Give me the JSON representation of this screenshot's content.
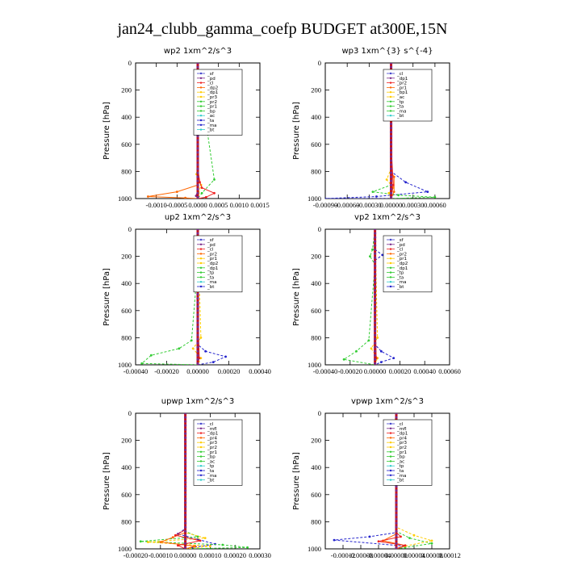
{
  "figure": {
    "title": "jan24_clubb_gamma_coefp  BUDGET at300E,15N"
  },
  "chart_data": [
    {
      "type": "line",
      "title": "wp2  1xm^2/s^3",
      "ylabel": "Pressure [hPa]",
      "xlim": [
        -0.0015,
        0.0015
      ],
      "ylim": [
        1000,
        0
      ],
      "y_ticks": [
        0,
        200,
        400,
        600,
        800,
        1000
      ],
      "x_tick_labels": [
        "-0.0010",
        "-0.0005",
        "0.0000",
        "0.0005",
        "0.0010",
        "0.0015"
      ],
      "x_tick_values": [
        -0.001,
        -0.0005,
        0.0,
        0.0005,
        0.001,
        0.0015
      ],
      "legend": [
        "_sf",
        "_pd",
        "_cl",
        "_dp2",
        "_dp1",
        "_pr3",
        "_pr2",
        "_pr1",
        "_bp",
        "_ac",
        "_ta",
        "_ma",
        "_bt"
      ],
      "series": [
        {
          "name": "_pr1",
          "color": "#33cc33",
          "style": "dash",
          "x": [
            0,
            3e-05,
            8e-05,
            0.00015,
            0.0001,
            0.0004,
            0.0001,
            0
          ],
          "y": [
            0,
            120,
            170,
            200,
            230,
            860,
            960,
            1000
          ]
        },
        {
          "name": "_dp1",
          "color": "#ffcc00",
          "style": "dash",
          "x": [
            0,
            0,
            -3e-05,
            8e-05,
            2e-05,
            0
          ],
          "y": [
            0,
            700,
            820,
            900,
            960,
            1000
          ]
        },
        {
          "name": "_dp2",
          "color": "#ff6600",
          "style": "solid",
          "x": [
            0,
            0,
            -0.0005,
            -0.0012,
            -0.0003,
            0
          ],
          "y": [
            0,
            900,
            950,
            985,
            995,
            1000
          ]
        },
        {
          "name": "_cl",
          "color": "#ee2222",
          "style": "solid",
          "x": [
            0,
            0,
            5e-05,
            0.0001,
            0.0004,
            0.0002,
            0
          ],
          "y": [
            0,
            780,
            880,
            920,
            960,
            990,
            1000
          ]
        },
        {
          "name": "_pd",
          "color": "#7a2a8a",
          "style": "solid",
          "x": [
            0,
            0,
            -4e-05,
            0
          ],
          "y": [
            0,
            940,
            980,
            1000
          ]
        },
        {
          "name": "_sf",
          "color": "#4444cc",
          "style": "solid",
          "x": [
            0,
            0,
            0
          ],
          "y": [
            0,
            500,
            1000
          ]
        }
      ]
    },
    {
      "type": "line",
      "title": "wp3  1xm^{3} s^{-4}",
      "ylabel": "Pressure [hPa]",
      "xlim": [
        -0.0009,
        0.0008
      ],
      "ylim": [
        1000,
        0
      ],
      "y_ticks": [
        0,
        200,
        400,
        600,
        800,
        1000
      ],
      "x_tick_labels": [
        "-0.00090",
        "-0.00060",
        "-0.00030",
        "0.00000",
        "0.00030",
        "0.00060"
      ],
      "x_tick_values": [
        -0.0009,
        -0.0006,
        -0.0003,
        0.0,
        0.0003,
        0.0006
      ],
      "legend": [
        "_cl",
        "_dp1",
        "_pr2",
        "_pr1",
        "_bp1",
        "_ac",
        "_tp",
        "_ta",
        "_ma",
        "_bt"
      ],
      "series": [
        {
          "name": "_tp",
          "color": "#2222cc",
          "style": "dash",
          "x": [
            0,
            0,
            5e-05,
            9e-05,
            4e-05,
            0,
            0,
            0.0002,
            0.0005,
            -0.0002,
            -0.0009,
            0
          ],
          "y": [
            0,
            120,
            140,
            160,
            190,
            220,
            800,
            880,
            950,
            985,
            1000,
            1000
          ]
        },
        {
          "name": "_ac",
          "color": "#33cc33",
          "style": "dash",
          "x": [
            0,
            0,
            -0.00025,
            0.0001,
            0.0006,
            0
          ],
          "y": [
            0,
            900,
            950,
            975,
            990,
            1000
          ]
        },
        {
          "name": "_pr2",
          "color": "#ffcc00",
          "style": "dash",
          "x": [
            0,
            0,
            -6e-05,
            3e-05,
            -3e-05,
            0
          ],
          "y": [
            0,
            780,
            860,
            920,
            960,
            1000
          ]
        },
        {
          "name": "_dp1",
          "color": "#ff6600",
          "style": "solid",
          "x": [
            0,
            0,
            4e-05,
            4e-05,
            0
          ],
          "y": [
            0,
            800,
            840,
            950,
            1000
          ]
        },
        {
          "name": "_cl",
          "color": "#ee2222",
          "style": "solid",
          "x": [
            0,
            0,
            3e-05,
            0
          ],
          "y": [
            0,
            600,
            900,
            1000
          ]
        }
      ]
    },
    {
      "type": "line",
      "title": "up2  1xm^2/s^3",
      "ylabel": "Pressure [hPa]",
      "xlim": [
        -0.0004,
        0.0004
      ],
      "ylim": [
        1000,
        0
      ],
      "y_ticks": [
        0,
        200,
        400,
        600,
        800,
        1000
      ],
      "x_tick_labels": [
        "-0.00040",
        "-0.00020",
        "0.00000",
        "0.00020",
        "0.00040"
      ],
      "x_tick_values": [
        -0.0004,
        -0.0002,
        0.0,
        0.0002,
        0.0004
      ],
      "legend": [
        "_sf",
        "_pd",
        "_cl",
        "_pr2",
        "_pr1",
        "_dp2",
        "_dp1",
        "_tp",
        "_ta",
        "_ma",
        "_bt"
      ],
      "series": [
        {
          "name": "_tp",
          "color": "#2222cc",
          "style": "dash",
          "x": [
            0,
            0,
            5e-05,
            0.00018,
            0.0001,
            0
          ],
          "y": [
            0,
            850,
            900,
            940,
            980,
            1000
          ]
        },
        {
          "name": "_dp1",
          "color": "#33cc33",
          "style": "dash",
          "x": [
            0,
            1e-05,
            -2e-05,
            0,
            -4e-05,
            -0.00012,
            -0.0003,
            -0.00036,
            0
          ],
          "y": [
            0,
            150,
            200,
            260,
            820,
            880,
            930,
            990,
            1000
          ]
        },
        {
          "name": "_pr2",
          "color": "#ffcc00",
          "style": "dash",
          "x": [
            0,
            2e-05,
            -3e-05,
            2e-05,
            0
          ],
          "y": [
            0,
            800,
            880,
            950,
            1000
          ]
        },
        {
          "name": "_cl",
          "color": "#ee2222",
          "style": "solid",
          "x": [
            0,
            0,
            1e-05,
            0
          ],
          "y": [
            0,
            600,
            950,
            1000
          ]
        }
      ]
    },
    {
      "type": "line",
      "title": "vp2  1xm^2/s^3",
      "ylabel": "Pressure [hPa]",
      "xlim": [
        -0.0004,
        0.0006
      ],
      "ylim": [
        1000,
        0
      ],
      "y_ticks": [
        0,
        200,
        400,
        600,
        800,
        1000
      ],
      "x_tick_labels": [
        "-0.00040",
        "-0.00020",
        "0.00000",
        "0.00020",
        "0.00040",
        "0.00060"
      ],
      "x_tick_values": [
        -0.0004,
        -0.0002,
        0.0,
        0.0002,
        0.0004,
        0.0006
      ],
      "legend": [
        "_sf",
        "_pd",
        "_cl",
        "_pr2",
        "_pr1",
        "_dp2",
        "_dp1",
        "_tp",
        "_ta",
        "_ma",
        "_bt"
      ],
      "series": [
        {
          "name": "_tp",
          "color": "#2222cc",
          "style": "dash",
          "x": [
            0,
            0,
            6e-05,
            0,
            0,
            5e-05,
            0.00015,
            5e-05,
            0
          ],
          "y": [
            0,
            150,
            190,
            230,
            850,
            900,
            950,
            980,
            1000
          ]
        },
        {
          "name": "_dp1",
          "color": "#33cc33",
          "style": "dash",
          "x": [
            0,
            -2e-05,
            -4e-05,
            0,
            -5e-05,
            -0.00015,
            -0.00025,
            0
          ],
          "y": [
            0,
            150,
            200,
            260,
            820,
            900,
            960,
            1000
          ]
        },
        {
          "name": "_pr2",
          "color": "#ffcc00",
          "style": "dash",
          "x": [
            0,
            2e-05,
            -3e-05,
            2e-05,
            0
          ],
          "y": [
            0,
            800,
            880,
            950,
            1000
          ]
        },
        {
          "name": "_cl",
          "color": "#ee2222",
          "style": "solid",
          "x": [
            0,
            0,
            1e-05,
            0
          ],
          "y": [
            0,
            600,
            950,
            1000
          ]
        }
      ]
    },
    {
      "type": "line",
      "title": "upwp  1xm^2/s^3",
      "ylabel": "Pressure [hPa]",
      "xlim": [
        -0.0002,
        0.0003
      ],
      "ylim": [
        1000,
        0
      ],
      "y_ticks": [
        0,
        200,
        400,
        600,
        800,
        1000
      ],
      "x_tick_labels": [
        "-0.00020",
        "-0.00010",
        "0.00000",
        "0.00010",
        "0.00020",
        "0.00030"
      ],
      "x_tick_values": [
        -0.0002,
        -0.0001,
        0.0,
        0.0001,
        0.0002,
        0.0003
      ],
      "legend": [
        "_cl",
        "_mfl",
        "_dp1",
        "_pr4",
        "_pr3",
        "_pr2",
        "_pr1",
        "_bp",
        "_ac",
        "_tp",
        "_ta",
        "_ma",
        "_bt"
      ],
      "series": [
        {
          "name": "_tp",
          "color": "#2222cc",
          "style": "dash",
          "x": [
            0,
            0,
            -3e-05,
            5e-05,
            0.00012,
            3e-05,
            0
          ],
          "y": [
            0,
            850,
            890,
            930,
            965,
            990,
            1000
          ]
        },
        {
          "name": "_ac",
          "color": "#33cc33",
          "style": "dash",
          "x": [
            0,
            0,
            5e-05,
            -0.00018,
            0.00015,
            0.00025,
            0
          ],
          "y": [
            0,
            870,
            910,
            945,
            970,
            990,
            1000
          ]
        },
        {
          "name": "_pr2",
          "color": "#ffcc00",
          "style": "dash",
          "x": [
            0,
            0,
            8e-05,
            -0.00015,
            0.0001,
            0
          ],
          "y": [
            0,
            880,
            920,
            950,
            980,
            1000
          ]
        },
        {
          "name": "_pr3",
          "color": "#ff6600",
          "style": "solid",
          "x": [
            0,
            0,
            -5e-05,
            -0.0001,
            4e-05,
            0
          ],
          "y": [
            0,
            880,
            915,
            950,
            980,
            1000
          ]
        },
        {
          "name": "_dp1",
          "color": "#ee2222",
          "style": "solid",
          "x": [
            0,
            0,
            -4e-05,
            6e-05,
            -3e-05,
            0
          ],
          "y": [
            0,
            860,
            900,
            940,
            975,
            1000
          ]
        },
        {
          "name": "_cl",
          "color": "#7a2a8a",
          "style": "solid",
          "x": [
            0,
            0,
            0
          ],
          "y": [
            0,
            500,
            1000
          ]
        }
      ]
    },
    {
      "type": "line",
      "title": "vpwp  1xm^2/s^3",
      "ylabel": "Pressure [hPa]",
      "xlim": [
        -0.00016,
        0.00012
      ],
      "ylim": [
        1000,
        0
      ],
      "y_ticks": [
        0,
        200,
        400,
        600,
        800,
        1000
      ],
      "x_tick_labels": [
        "-0.00012",
        "-0.00008",
        "-0.00004",
        "0.00000",
        "0.00004",
        "0.00008",
        "0.00012"
      ],
      "x_tick_values": [
        -0.00012,
        -8e-05,
        -4e-05,
        0.0,
        4e-05,
        8e-05,
        0.00012
      ],
      "legend": [
        "_cl",
        "_mfl",
        "_dp1",
        "_pr4",
        "_pr3",
        "_pr2",
        "_pr1",
        "_bp",
        "_ac",
        "_tp",
        "_ta",
        "_ma",
        "_bt"
      ],
      "series": [
        {
          "name": "_tp",
          "color": "#2222cc",
          "style": "dash",
          "x": [
            0,
            0,
            -6e-05,
            -0.00014,
            2e-05,
            0
          ],
          "y": [
            0,
            880,
            910,
            935,
            980,
            1000
          ]
        },
        {
          "name": "_ac",
          "color": "#33cc33",
          "style": "dash",
          "x": [
            0,
            0,
            3e-05,
            8e-05,
            2e-05,
            0
          ],
          "y": [
            0,
            870,
            920,
            960,
            990,
            1000
          ]
        },
        {
          "name": "_pr2",
          "color": "#ffcc00",
          "style": "dash",
          "x": [
            0,
            -1e-05,
            0,
            0,
            4e-05,
            8e-05,
            2e-05,
            0
          ],
          "y": [
            0,
            180,
            260,
            840,
            900,
            940,
            980,
            1000
          ]
        },
        {
          "name": "_pr3",
          "color": "#ff6600",
          "style": "solid",
          "x": [
            0,
            0,
            -3e-05,
            2e-05,
            0
          ],
          "y": [
            0,
            890,
            940,
            975,
            1000
          ]
        },
        {
          "name": "_dp1",
          "color": "#ee2222",
          "style": "solid",
          "x": [
            0,
            0,
            1e-05,
            -4e-05,
            2e-05,
            0
          ],
          "y": [
            0,
            880,
            910,
            945,
            975,
            1000
          ]
        },
        {
          "name": "_mfl",
          "color": "#33cccc",
          "style": "dash",
          "x": [
            0,
            0,
            2e-05,
            0
          ],
          "y": [
            0,
            150,
            220,
            300
          ]
        },
        {
          "name": "_cl",
          "color": "#7a2a8a",
          "style": "solid",
          "x": [
            0,
            0,
            0
          ],
          "y": [
            0,
            500,
            1000
          ]
        }
      ]
    }
  ]
}
